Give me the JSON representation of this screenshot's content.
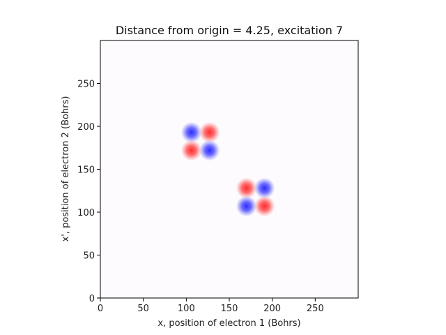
{
  "chart_data": {
    "type": "heatmap",
    "title": "Distance from origin = 4.25, excitation 7",
    "xlabel": "x, position of electron 1 (Bohrs)",
    "ylabel": "x', position of electron 2 (Bohrs)",
    "xlim": [
      0,
      300
    ],
    "ylim": [
      0,
      300
    ],
    "xticks": [
      0,
      50,
      100,
      150,
      200,
      250
    ],
    "yticks": [
      0,
      50,
      100,
      150,
      200,
      250
    ],
    "grid": false,
    "colormap": "bwr",
    "colors": {
      "positive": "#ff3b3b",
      "negative": "#3b3bff",
      "background": "#fdfbfd"
    },
    "lobes": [
      {
        "x": 106,
        "y": 193,
        "sign": -1
      },
      {
        "x": 127,
        "y": 193,
        "sign": 1
      },
      {
        "x": 106,
        "y": 172,
        "sign": 1
      },
      {
        "x": 127,
        "y": 172,
        "sign": -1
      },
      {
        "x": 170,
        "y": 128,
        "sign": 1
      },
      {
        "x": 191,
        "y": 128,
        "sign": -1
      },
      {
        "x": 170,
        "y": 107,
        "sign": -1
      },
      {
        "x": 191,
        "y": 107,
        "sign": 1
      }
    ],
    "lobe_sigma": 5.5
  }
}
